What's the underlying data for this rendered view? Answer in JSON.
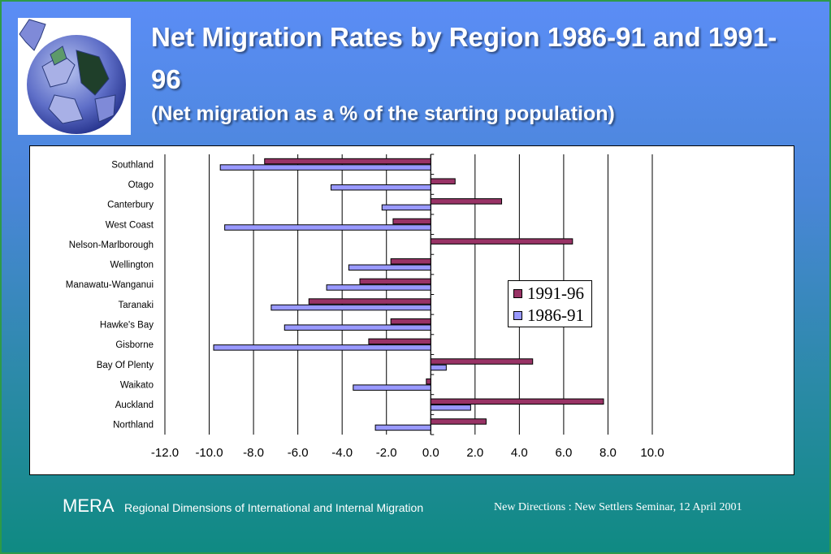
{
  "slide": {
    "title": "Net Migration Rates by Region 1986-91 and 1991-96",
    "subtitle": "(Net migration as a % of the starting population)",
    "footer_brand": "MERA",
    "footer_subtitle": "Regional Dimensions of International and Internal Migration",
    "footer_event": "New Directions : New Settlers Seminar, 12 April 2001"
  },
  "colors": {
    "series_1991_96": "#993366",
    "series_1986_91": "#9999ff"
  },
  "chart_data": {
    "type": "bar",
    "orientation": "horizontal",
    "title": "Net Migration Rates by Region 1986-91 and 1991-96",
    "subtitle": "(Net migration as a % of the starting population)",
    "categories": [
      "Southland",
      "Otago",
      "Canterbury",
      "West Coast",
      "Nelson-Marlborough",
      "Wellington",
      "Manawatu-Wanganui",
      "Taranaki",
      "Hawke's Bay",
      "Gisborne",
      "Bay Of Plenty",
      "Waikato",
      "Auckland",
      "Northland"
    ],
    "series": [
      {
        "name": "1991-96",
        "values": [
          -7.5,
          1.1,
          3.2,
          -1.7,
          6.4,
          -1.8,
          -3.2,
          -5.5,
          -1.8,
          -2.8,
          4.6,
          -0.2,
          7.8,
          2.5
        ]
      },
      {
        "name": "1986-91",
        "values": [
          -9.5,
          -4.5,
          -2.2,
          -9.3,
          0.0,
          -3.7,
          -4.7,
          -7.2,
          -6.6,
          -9.8,
          0.7,
          -3.5,
          1.8,
          -2.5
        ]
      }
    ],
    "xlim": [
      -12.0,
      10.0
    ],
    "xticks": [
      "-12.0",
      "-10.0",
      "-8.0",
      "-6.0",
      "-4.0",
      "-2.0",
      "0.0",
      "2.0",
      "4.0",
      "6.0",
      "8.0",
      "10.0"
    ],
    "grid": true,
    "legend_position": "right-center"
  }
}
